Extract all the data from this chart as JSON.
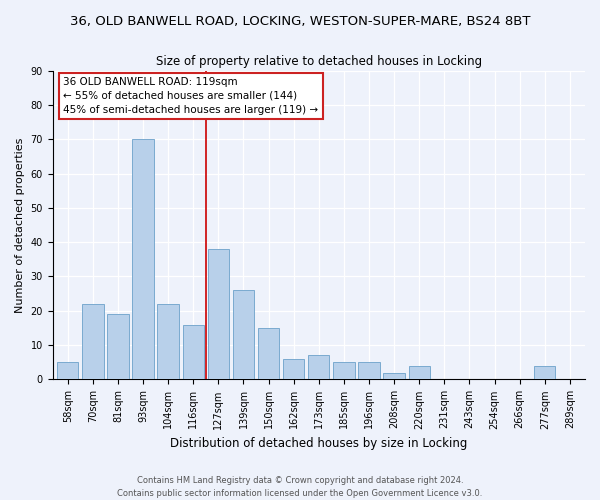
{
  "title": "36, OLD BANWELL ROAD, LOCKING, WESTON-SUPER-MARE, BS24 8BT",
  "subtitle": "Size of property relative to detached houses in Locking",
  "xlabel": "Distribution of detached houses by size in Locking",
  "ylabel": "Number of detached properties",
  "bar_labels": [
    "58sqm",
    "70sqm",
    "81sqm",
    "93sqm",
    "104sqm",
    "116sqm",
    "127sqm",
    "139sqm",
    "150sqm",
    "162sqm",
    "173sqm",
    "185sqm",
    "196sqm",
    "208sqm",
    "220sqm",
    "231sqm",
    "243sqm",
    "254sqm",
    "266sqm",
    "277sqm",
    "289sqm"
  ],
  "bar_heights": [
    5,
    22,
    19,
    70,
    22,
    16,
    38,
    26,
    15,
    6,
    7,
    5,
    5,
    2,
    4,
    0,
    0,
    0,
    0,
    4,
    0
  ],
  "bar_color": "#b8d0ea",
  "bar_edge_color": "#7aaacf",
  "vline_x": 5.5,
  "vline_color": "#cc0000",
  "annotation_title": "36 OLD BANWELL ROAD: 119sqm",
  "annotation_line1": "← 55% of detached houses are smaller (144)",
  "annotation_line2": "45% of semi-detached houses are larger (119) →",
  "ylim": [
    0,
    90
  ],
  "yticks": [
    0,
    10,
    20,
    30,
    40,
    50,
    60,
    70,
    80,
    90
  ],
  "footer1": "Contains HM Land Registry data © Crown copyright and database right 2024.",
  "footer2": "Contains public sector information licensed under the Open Government Licence v3.0.",
  "bg_color": "#eef2fb",
  "title_fontsize": 9.5,
  "subtitle_fontsize": 8.5,
  "xlabel_fontsize": 8.5,
  "ylabel_fontsize": 8.0,
  "tick_fontsize": 7.0,
  "annot_fontsize": 7.5,
  "footer_fontsize": 6.0
}
